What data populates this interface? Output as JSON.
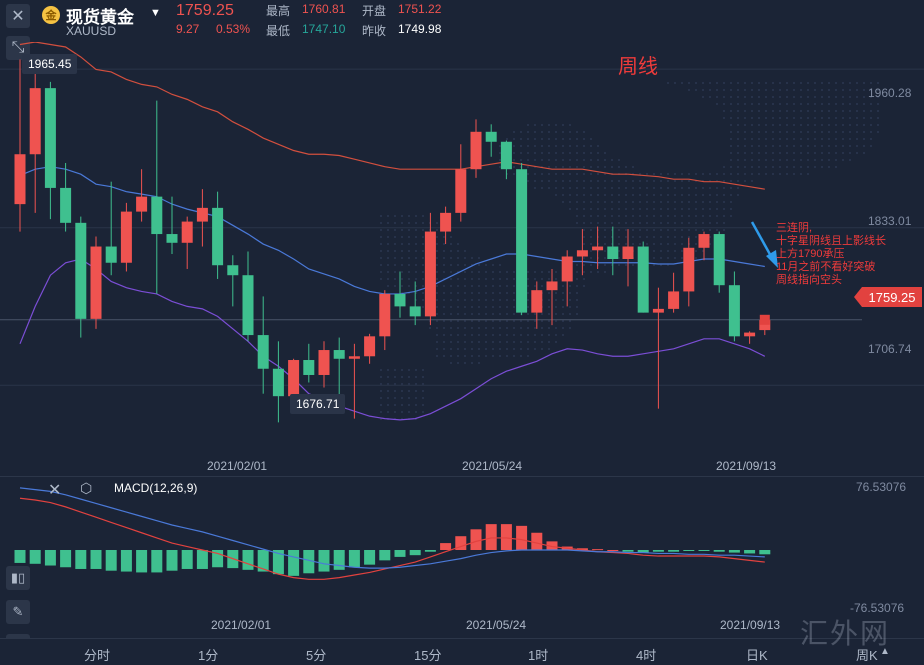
{
  "header": {
    "close_icon": "close-icon",
    "expand_icon": "expand-arrows-icon",
    "coin_glyph": "金",
    "title": "现货黄金",
    "symbol": "XAUUSD",
    "price": "1759.25",
    "change": "9.27",
    "change_pct": "0.53%",
    "stats": [
      {
        "label": "最高",
        "value": "1760.81",
        "color": "#ef5350"
      },
      {
        "label": "开盘",
        "value": "1751.22",
        "color": "#ef5350"
      },
      {
        "label": "最低",
        "value": "1747.10",
        "color": "#26a69a"
      },
      {
        "label": "昨收",
        "value": "1749.98",
        "color": "#ffffff"
      }
    ]
  },
  "annotations": {
    "weekly": "周线",
    "note_lines": [
      "三连阴,",
      "十字星阴线且上影线长",
      "上方1790承压",
      "11月之前不看好突破",
      "周线指向空头"
    ],
    "high_callout": "1965.45",
    "low_callout": "1676.71",
    "price_tag": "1759.25"
  },
  "colors": {
    "up": "#ef5350",
    "down": "#3fc08f",
    "accent": "#e2423f"
  },
  "chart_data": [
    {
      "type": "candlestick",
      "title": "现货黄金 XAUUSD 周线",
      "x_tick_labels": [
        "2021/02/01",
        "2021/05/24",
        "2021/09/13"
      ],
      "y_tick_labels": [
        "1960.28",
        "1833.01",
        "1706.74"
      ],
      "ylim": [
        1634,
        1982
      ],
      "grid": true,
      "ohlc": [
        [
          1852,
          1968,
          1830,
          1892
        ],
        [
          1892,
          1965,
          1845,
          1945
        ],
        [
          1945,
          1950,
          1840,
          1865
        ],
        [
          1865,
          1885,
          1830,
          1837
        ],
        [
          1837,
          1842,
          1745,
          1760
        ],
        [
          1760,
          1826,
          1752,
          1818
        ],
        [
          1818,
          1870,
          1795,
          1805
        ],
        [
          1805,
          1853,
          1798,
          1846
        ],
        [
          1846,
          1880,
          1838,
          1858
        ],
        [
          1858,
          1935,
          1780,
          1828
        ],
        [
          1828,
          1858,
          1812,
          1821
        ],
        [
          1821,
          1842,
          1800,
          1838
        ],
        [
          1838,
          1864,
          1818,
          1849
        ],
        [
          1849,
          1862,
          1792,
          1803
        ],
        [
          1803,
          1811,
          1770,
          1795
        ],
        [
          1795,
          1814,
          1742,
          1747
        ],
        [
          1747,
          1778,
          1700,
          1720
        ],
        [
          1720,
          1742,
          1677,
          1698
        ],
        [
          1698,
          1728,
          1685,
          1727
        ],
        [
          1727,
          1740,
          1709,
          1715
        ],
        [
          1715,
          1742,
          1705,
          1735
        ],
        [
          1735,
          1745,
          1690,
          1728
        ],
        [
          1728,
          1740,
          1680,
          1730
        ],
        [
          1730,
          1748,
          1724,
          1746
        ],
        [
          1746,
          1783,
          1735,
          1780
        ],
        [
          1780,
          1798,
          1761,
          1770
        ],
        [
          1770,
          1790,
          1755,
          1762
        ],
        [
          1762,
          1845,
          1755,
          1830
        ],
        [
          1830,
          1850,
          1820,
          1845
        ],
        [
          1845,
          1900,
          1838,
          1880
        ],
        [
          1880,
          1920,
          1873,
          1910
        ],
        [
          1910,
          1916,
          1890,
          1902
        ],
        [
          1902,
          1903,
          1872,
          1880
        ],
        [
          1880,
          1885,
          1763,
          1765
        ],
        [
          1765,
          1790,
          1752,
          1783
        ],
        [
          1783,
          1800,
          1755,
          1790
        ],
        [
          1790,
          1815,
          1770,
          1810
        ],
        [
          1810,
          1832,
          1795,
          1815
        ],
        [
          1815,
          1834,
          1800,
          1818
        ],
        [
          1818,
          1834,
          1795,
          1808
        ],
        [
          1808,
          1832,
          1786,
          1818
        ],
        [
          1818,
          1822,
          1765,
          1765
        ],
        [
          1765,
          1785,
          1688,
          1768
        ],
        [
          1768,
          1797,
          1765,
          1782
        ],
        [
          1782,
          1825,
          1770,
          1817
        ],
        [
          1817,
          1830,
          1807,
          1828
        ],
        [
          1828,
          1830,
          1781,
          1787
        ],
        [
          1787,
          1798,
          1742,
          1746
        ],
        [
          1746,
          1750,
          1740,
          1749
        ],
        [
          1751,
          1761,
          1747,
          1759
        ]
      ],
      "indicators": [
        {
          "name": "upper band",
          "color": "#d24f3e",
          "values": [
            1980,
            1982,
            1980,
            1978,
            1970,
            1960,
            1958,
            1952,
            1948,
            1946,
            1940,
            1936,
            1930,
            1926,
            1918,
            1912,
            1905,
            1900,
            1895,
            1892,
            1892,
            1891,
            1888,
            1885,
            1882,
            1880,
            1880,
            1880,
            1880,
            1880,
            1882,
            1884,
            1886,
            1884,
            1882,
            1880,
            1880,
            1880,
            1878,
            1876,
            1876,
            1875,
            1874,
            1872,
            1872,
            1870,
            1870,
            1868,
            1866,
            1864
          ]
        },
        {
          "name": "middle band",
          "color": "#4a79d8",
          "values": [
            1875,
            1880,
            1882,
            1880,
            1876,
            1868,
            1866,
            1862,
            1860,
            1858,
            1852,
            1848,
            1845,
            1842,
            1835,
            1828,
            1820,
            1815,
            1808,
            1800,
            1796,
            1792,
            1786,
            1782,
            1780,
            1780,
            1782,
            1786,
            1792,
            1798,
            1804,
            1808,
            1812,
            1812,
            1810,
            1808,
            1806,
            1806,
            1805,
            1805,
            1805,
            1805,
            1804,
            1804,
            1806,
            1808,
            1808,
            1806,
            1804,
            1802
          ]
        },
        {
          "name": "lower band",
          "color": "#7b4ed6",
          "values": [
            1740,
            1770,
            1795,
            1805,
            1808,
            1800,
            1790,
            1785,
            1782,
            1780,
            1774,
            1770,
            1768,
            1762,
            1752,
            1742,
            1730,
            1722,
            1712,
            1700,
            1695,
            1690,
            1686,
            1682,
            1680,
            1679,
            1680,
            1684,
            1690,
            1696,
            1704,
            1712,
            1718,
            1722,
            1726,
            1732,
            1736,
            1735,
            1732,
            1730,
            1730,
            1732,
            1734,
            1736,
            1740,
            1744,
            1744,
            1740,
            1736,
            1730
          ]
        }
      ]
    },
    {
      "type": "bar",
      "title": "MACD(12,26,9)",
      "x_tick_labels": [
        "2021/02/01",
        "2021/05/24",
        "2021/09/13"
      ],
      "y_tick_labels": [
        "76.53076",
        "-76.53076"
      ],
      "ylim": [
        -76.53076,
        76.53076
      ],
      "series": [
        {
          "name": "histogram",
          "values": [
            -15,
            -16,
            -18,
            -20,
            -22,
            -22,
            -24,
            -25,
            -26,
            -26,
            -24,
            -22,
            -22,
            -20,
            -21,
            -23,
            -25,
            -28,
            -30,
            -27,
            -25,
            -23,
            -20,
            -17,
            -12,
            -8,
            -6,
            -2,
            8,
            16,
            24,
            30,
            30,
            28,
            20,
            10,
            4,
            2,
            1,
            0,
            -2,
            -3,
            -2,
            -2,
            -1,
            -1,
            -2,
            -3,
            -4,
            -5
          ]
        },
        {
          "name": "DIF",
          "color": "#e2423f",
          "values": [
            60,
            58,
            55,
            50,
            44,
            38,
            32,
            26,
            20,
            14,
            8,
            4,
            0,
            -4,
            -10,
            -16,
            -22,
            -28,
            -32,
            -34,
            -34,
            -32,
            -29,
            -26,
            -22,
            -18,
            -14,
            -8,
            -2,
            4,
            10,
            14,
            14,
            12,
            8,
            4,
            2,
            0,
            -2,
            -3,
            -4,
            -6,
            -7,
            -7,
            -7,
            -7,
            -8,
            -10,
            -12,
            -14
          ]
        },
        {
          "name": "DEA",
          "color": "#4a79d8",
          "values": [
            72,
            70,
            68,
            64,
            59,
            54,
            49,
            44,
            39,
            34,
            29,
            25,
            21,
            16,
            11,
            6,
            1,
            -4,
            -8,
            -12,
            -16,
            -18,
            -20,
            -21,
            -21,
            -20,
            -18,
            -16,
            -13,
            -10,
            -6,
            -3,
            -1,
            0,
            0,
            0,
            0,
            -1,
            -2,
            -2,
            -3,
            -3,
            -4,
            -4,
            -5,
            -5,
            -6,
            -6,
            -7,
            -8
          ]
        }
      ]
    }
  ],
  "macd": {
    "label": "MACD(12,26,9)",
    "eye_icon": "eye-icon"
  },
  "timeframes": [
    "分时",
    "1分",
    "5分",
    "15分",
    "1时",
    "4时",
    "日K",
    "周K"
  ],
  "tools": [
    "candles-icon",
    "pen-icon",
    "indicator-icon"
  ],
  "watermark": "汇外网"
}
